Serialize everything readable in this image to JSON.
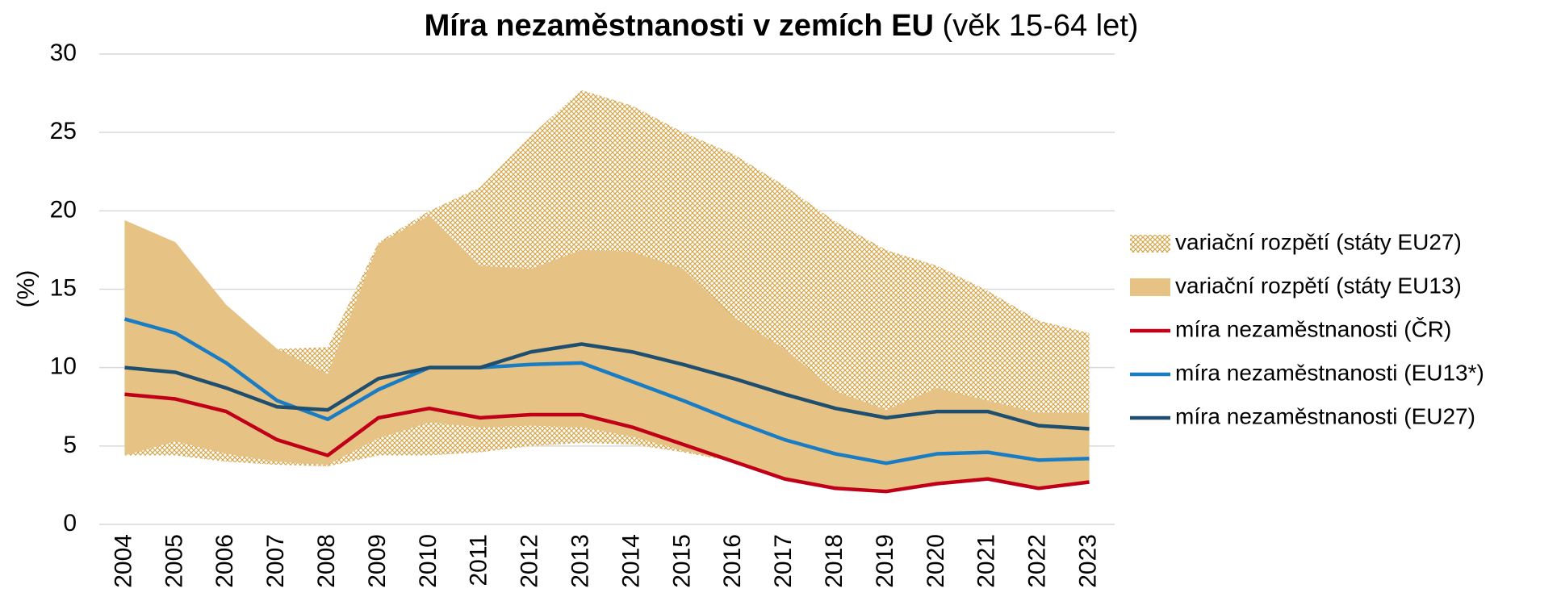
{
  "chart_data": {
    "type": "range-line",
    "title": "Míra nezaměstnanosti v zemích EU",
    "title_suffix": "(věk 15-64 let)",
    "y_label": "(%)",
    "categories": [
      "2004",
      "2005",
      "2006",
      "2007",
      "2008",
      "2009",
      "2010",
      "2011",
      "2012",
      "2013",
      "2014",
      "2015",
      "2016",
      "2017",
      "2018",
      "2019",
      "2020",
      "2021",
      "2022",
      "2023"
    ],
    "ylim": [
      0,
      30
    ],
    "yticks": [
      0,
      5,
      10,
      15,
      20,
      25,
      30
    ],
    "grid": true,
    "legend": "right",
    "series": [
      {
        "name": "variační rozpětí (státy EU27)",
        "kind": "range",
        "pattern": "crosshatch",
        "color": "#d4a84f",
        "high": [
          19.4,
          18.0,
          14.0,
          11.2,
          11.3,
          18.0,
          20.0,
          21.5,
          24.8,
          27.7,
          26.7,
          25.0,
          23.6,
          21.6,
          19.3,
          17.5,
          16.5,
          14.9,
          13.0,
          12.2
        ],
        "low": [
          4.4,
          4.4,
          4.0,
          3.8,
          3.7,
          4.4,
          4.4,
          4.6,
          5.0,
          5.2,
          5.1,
          4.6,
          4.0,
          2.9,
          2.3,
          2.0,
          2.6,
          2.8,
          2.3,
          2.6
        ]
      },
      {
        "name": "variační rozpětí (státy EU13)",
        "kind": "range",
        "color": "#e6c385",
        "high": [
          19.4,
          18.0,
          14.0,
          11.2,
          9.6,
          17.9,
          19.7,
          16.5,
          16.3,
          17.5,
          17.4,
          16.3,
          13.2,
          11.2,
          8.5,
          7.3,
          8.7,
          7.9,
          7.1,
          7.1
        ],
        "low": [
          4.4,
          5.3,
          4.5,
          4.0,
          3.8,
          5.5,
          6.5,
          6.2,
          6.3,
          6.2,
          5.6,
          4.7,
          4.0,
          2.9,
          2.3,
          2.0,
          2.6,
          2.8,
          2.3,
          2.6
        ]
      },
      {
        "name": "míra nezaměstnanosti (ČR)",
        "kind": "line",
        "color": "#c00018",
        "values": [
          8.3,
          8.0,
          7.2,
          5.4,
          4.4,
          6.8,
          7.4,
          6.8,
          7.0,
          7.0,
          6.2,
          5.1,
          4.0,
          2.9,
          2.3,
          2.1,
          2.6,
          2.9,
          2.3,
          2.7
        ]
      },
      {
        "name": "míra nezaměstnanosti (EU13*)",
        "kind": "line",
        "color": "#1a7dc4",
        "values": [
          13.1,
          12.2,
          10.3,
          7.9,
          6.7,
          8.6,
          10.0,
          10.0,
          10.2,
          10.3,
          9.1,
          7.9,
          6.6,
          5.4,
          4.5,
          3.9,
          4.5,
          4.6,
          4.1,
          4.2
        ]
      },
      {
        "name": "míra nezaměstnanosti (EU27)",
        "kind": "line",
        "color": "#1f4e6e",
        "values": [
          10.0,
          9.7,
          8.7,
          7.5,
          7.3,
          9.3,
          10.0,
          10.0,
          11.0,
          11.5,
          11.0,
          10.2,
          9.3,
          8.3,
          7.4,
          6.8,
          7.2,
          7.2,
          6.3,
          6.1
        ]
      }
    ]
  }
}
